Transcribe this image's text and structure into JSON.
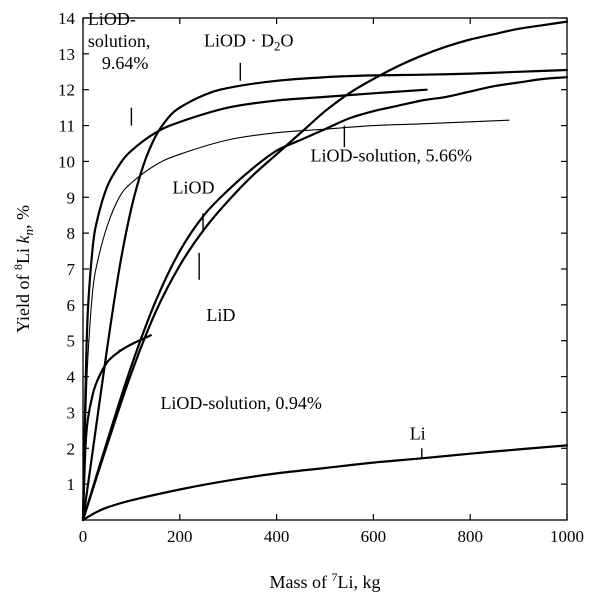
{
  "chart_data": {
    "type": "line",
    "xlabel": {
      "pre": "Mass of ",
      "sup": "7",
      "post": "Li, kg"
    },
    "ylabel": {
      "pre": "Yield of ",
      "sup": "8",
      "mid": "Li ",
      "k": "k",
      "sub": "n",
      "post": ", %"
    },
    "xlim": [
      0,
      1000
    ],
    "ylim": [
      0,
      14
    ],
    "xticks": [
      0,
      200,
      400,
      600,
      800,
      1000
    ],
    "yticks": [
      1,
      2,
      3,
      4,
      5,
      6,
      7,
      8,
      9,
      10,
      11,
      12,
      13,
      14
    ],
    "grid": false,
    "series": [
      {
        "name": "LiOD-solution, 9.64%",
        "width": 2.2,
        "x": [
          0,
          5,
          10,
          20,
          30,
          50,
          75,
          100,
          150,
          200,
          300,
          400,
          500,
          600,
          710
        ],
        "y": [
          0,
          3.5,
          5.8,
          7.6,
          8.4,
          9.3,
          9.9,
          10.3,
          10.8,
          11.1,
          11.5,
          11.7,
          11.8,
          11.9,
          12.0
        ]
      },
      {
        "name": "LiOD-solution, 5.66%",
        "width": 1.1,
        "x": [
          0,
          5,
          10,
          20,
          30,
          50,
          75,
          100,
          150,
          200,
          300,
          400,
          500,
          600,
          700,
          880
        ],
        "y": [
          0,
          2.6,
          4.5,
          6.4,
          7.2,
          8.2,
          9.0,
          9.4,
          9.9,
          10.2,
          10.6,
          10.8,
          10.9,
          11.0,
          11.05,
          11.15
        ]
      },
      {
        "name": "LiOD-solution, 0.94%",
        "width": 2.2,
        "x": [
          0,
          5,
          10,
          20,
          30,
          50,
          75,
          100,
          140
        ],
        "y": [
          0,
          2.0,
          2.8,
          3.5,
          3.9,
          4.4,
          4.7,
          4.9,
          5.15
        ]
      },
      {
        "name": "LiOD · D2O",
        "width": 2.2,
        "x": [
          0,
          25,
          50,
          75,
          100,
          125,
          150,
          175,
          200,
          250,
          300,
          400,
          500,
          600,
          700,
          800,
          900,
          1000
        ],
        "y": [
          0,
          2.4,
          4.8,
          7.0,
          8.7,
          9.9,
          10.7,
          11.2,
          11.5,
          11.85,
          12.05,
          12.25,
          12.35,
          12.4,
          12.42,
          12.45,
          12.5,
          12.55
        ]
      },
      {
        "name": "LiOD",
        "width": 2.2,
        "x": [
          0,
          50,
          100,
          150,
          200,
          250,
          300,
          350,
          400,
          450,
          500,
          550,
          600,
          650,
          700,
          750,
          800,
          850,
          900,
          950,
          1000
        ],
        "y": [
          0,
          2.2,
          4.3,
          6.1,
          7.5,
          8.5,
          9.2,
          9.8,
          10.3,
          10.6,
          10.9,
          11.2,
          11.4,
          11.55,
          11.7,
          11.8,
          11.95,
          12.1,
          12.2,
          12.3,
          12.35
        ]
      },
      {
        "name": "LiD",
        "width": 2.2,
        "x": [
          0,
          50,
          100,
          150,
          200,
          250,
          300,
          350,
          400,
          450,
          500,
          550,
          600,
          650,
          700,
          750,
          800,
          850,
          900,
          950,
          1000
        ],
        "y": [
          0,
          2.1,
          4.1,
          5.8,
          7.1,
          8.1,
          8.9,
          9.6,
          10.2,
          10.8,
          11.4,
          11.9,
          12.3,
          12.65,
          12.95,
          13.2,
          13.4,
          13.55,
          13.7,
          13.8,
          13.9
        ]
      },
      {
        "name": "Li",
        "width": 2.2,
        "x": [
          0,
          25,
          50,
          100,
          200,
          300,
          400,
          500,
          600,
          700,
          800,
          900,
          1000
        ],
        "y": [
          0,
          0.2,
          0.35,
          0.55,
          0.85,
          1.1,
          1.3,
          1.45,
          1.6,
          1.72,
          1.85,
          1.97,
          2.08
        ]
      }
    ],
    "annotations": [
      {
        "name": "annotation-liod-solution-964",
        "lines": [
          "LiOD-",
          "solution,",
          "9.64%"
        ],
        "at": [
          10,
          13.8
        ],
        "arrow_from": [
          100,
          11.5
        ],
        "arrow_to": [
          100,
          11.0
        ]
      },
      {
        "name": "annotation-liod-d2o",
        "parts": [
          "LiOD · D",
          "2",
          "O"
        ],
        "at": [
          250,
          13.2
        ],
        "arrow_from": [
          325,
          12.75
        ],
        "arrow_to": [
          325,
          12.25
        ]
      },
      {
        "name": "annotation-liod-solution-566",
        "text": "LiOD-solution, 5.66%",
        "at": [
          470,
          10.0
        ],
        "arrow_from": [
          540,
          10.4
        ],
        "arrow_to": [
          540,
          11.0
        ]
      },
      {
        "name": "annotation-liod",
        "text": "LiOD",
        "at": [
          185,
          9.1
        ],
        "arrow_from": [
          248,
          8.55
        ],
        "arrow_to": [
          248,
          8.05
        ]
      },
      {
        "name": "annotation-lid",
        "text": "LiD",
        "at": [
          255,
          5.55
        ],
        "arrow_from": [
          240,
          6.7
        ],
        "arrow_to": [
          240,
          7.45
        ]
      },
      {
        "name": "annotation-liod-solution-094",
        "text": "LiOD-solution, 0.94%",
        "at": [
          160,
          3.1
        ],
        "arrow_from": [
          75,
          4.75
        ],
        "arrow_to": [
          75,
          4.7
        ]
      },
      {
        "name": "annotation-li",
        "text": "Li",
        "at": [
          675,
          2.25
        ],
        "arrow_from": [
          700,
          2.0
        ],
        "arrow_to": [
          700,
          1.72
        ]
      }
    ]
  }
}
